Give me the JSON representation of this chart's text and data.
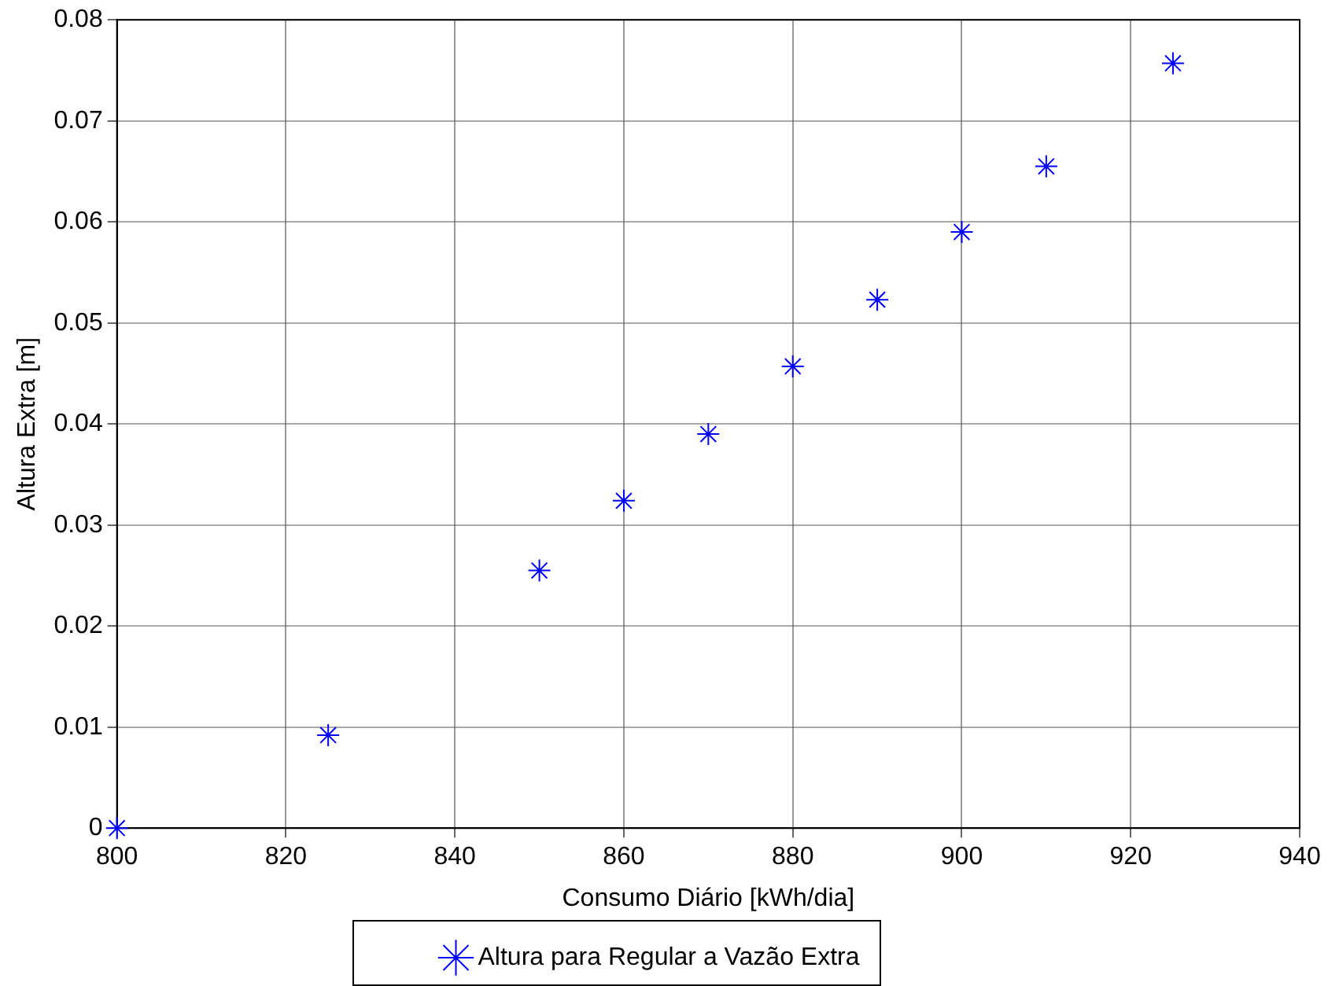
{
  "chart_data": {
    "type": "scatter",
    "xlabel": "Consumo Diário [kWh/dia]",
    "ylabel": "Altura Extra [m]",
    "x": [
      800,
      825,
      850,
      860,
      870,
      880,
      890,
      900,
      910,
      925
    ],
    "series": [
      {
        "name": "Altura para Regular a Vazão Extra",
        "color": "#0000ff",
        "values": [
          0,
          0.0092,
          0.0255,
          0.0324,
          0.039,
          0.0457,
          0.0523,
          0.059,
          0.0655,
          0.0757
        ]
      }
    ],
    "xlim": [
      800,
      940
    ],
    "xticks": [
      800,
      820,
      840,
      860,
      880,
      900,
      920,
      940
    ],
    "ylim": [
      0,
      0.08
    ],
    "yticks": [
      0,
      0.01,
      0.02,
      0.03,
      0.04,
      0.05,
      0.06,
      0.07,
      0.08
    ],
    "grid": true,
    "legend": "bottom",
    "marker": "cross"
  }
}
